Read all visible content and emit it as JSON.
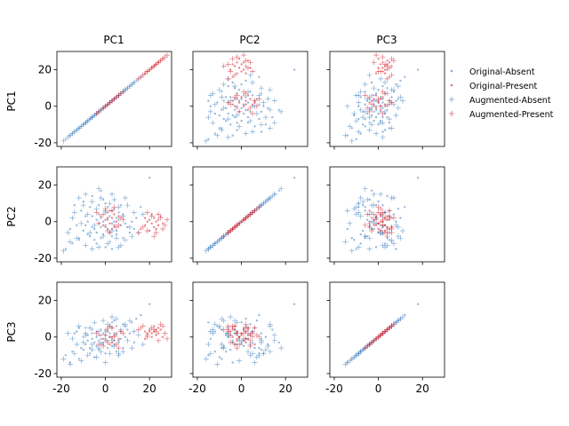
{
  "figure": {
    "row_labels": [
      "PC1",
      "PC2",
      "PC3"
    ],
    "col_labels": [
      "PC1",
      "PC2",
      "PC3"
    ]
  },
  "legend": {
    "placement": "right",
    "items": [
      {
        "label": "Original-Absent",
        "marker": "dot",
        "color": "#4f8ac4"
      },
      {
        "label": "Original-Present",
        "marker": "dot",
        "color": "#d9363e"
      },
      {
        "label": "Augmented-Absent",
        "marker": "plus",
        "color": "#4f8ac4"
      },
      {
        "label": "Augmented-Present",
        "marker": "plus",
        "color": "#d9363e"
      }
    ]
  },
  "chart_data": {
    "type": "scatter",
    "layout": "3x3 pair plot (row variable on y-axis, column variable on x-axis)",
    "variables": [
      "PC1",
      "PC2",
      "PC3"
    ],
    "xlim": [
      -22,
      30
    ],
    "ylim": [
      -22,
      30
    ],
    "x_ticks": [
      -20,
      0,
      20
    ],
    "y_ticks": [
      -20,
      0,
      20
    ],
    "grid": false,
    "colors": {
      "absent": "#4f8ac4",
      "present": "#d9363e"
    },
    "series": [
      {
        "name": "Original-Absent",
        "marker": "dot",
        "color": "#4f8ac4",
        "points": [
          [
            -18,
            -15,
            -10
          ],
          [
            -15,
            -12,
            -8
          ],
          [
            -12,
            -9,
            -12
          ],
          [
            -10,
            -5,
            -7
          ],
          [
            -9,
            -2,
            -4
          ],
          [
            -8,
            0,
            -2
          ],
          [
            -7,
            -8,
            -6
          ],
          [
            -6,
            3,
            -1
          ],
          [
            -5,
            -4,
            -3
          ],
          [
            -4,
            1,
            -5
          ],
          [
            -4,
            -6,
            0
          ],
          [
            -3,
            -1,
            -2
          ],
          [
            -3,
            4,
            1
          ],
          [
            -2,
            -3,
            -4
          ],
          [
            -2,
            2,
            -1
          ],
          [
            -1,
            -7,
            2
          ],
          [
            -1,
            0,
            -3
          ],
          [
            0,
            -2,
            1
          ],
          [
            0,
            5,
            3
          ],
          [
            1,
            -4,
            -2
          ],
          [
            1,
            1,
            4
          ],
          [
            2,
            -6,
            0
          ],
          [
            2,
            3,
            2
          ],
          [
            3,
            -1,
            -1
          ],
          [
            3,
            6,
            5
          ],
          [
            4,
            -3,
            2
          ],
          [
            4,
            0,
            -4
          ],
          [
            5,
            2,
            6
          ],
          [
            5,
            -5,
            1
          ],
          [
            6,
            1,
            -2
          ],
          [
            7,
            -2,
            3
          ],
          [
            8,
            4,
            7
          ],
          [
            9,
            -1,
            0
          ],
          [
            10,
            -3,
            4
          ],
          [
            12,
            0,
            8
          ],
          [
            14,
            2,
            10
          ],
          [
            -11,
            6,
            -6
          ],
          [
            -7,
            8,
            -9
          ],
          [
            -5,
            -10,
            -11
          ],
          [
            -3,
            9,
            -7
          ],
          [
            -6,
            -3,
            2
          ],
          [
            -2,
            -9,
            4
          ],
          [
            1,
            8,
            -6
          ],
          [
            3,
            -8,
            -5
          ],
          [
            6,
            5,
            -3
          ],
          [
            -9,
            3,
            5
          ],
          [
            -4,
            -12,
            3
          ],
          [
            0,
            10,
            -9
          ],
          [
            2,
            -11,
            6
          ],
          [
            4,
            7,
            9
          ],
          [
            -8,
            -7,
            1
          ],
          [
            -1,
            12,
            -4
          ],
          [
            5,
            -7,
            -8
          ],
          [
            7,
            9,
            -1
          ],
          [
            -13,
            -2,
            3
          ],
          [
            11,
            -6,
            2
          ],
          [
            16,
            8,
            12
          ],
          [
            20,
            24,
            18
          ],
          [
            -16,
            -4,
            -14
          ],
          [
            -10,
            11,
            0
          ],
          [
            -6,
            14,
            4
          ],
          [
            -2,
            17,
            -3
          ],
          [
            0,
            -14,
            -1
          ],
          [
            3,
            -15,
            8
          ],
          [
            8,
            -9,
            -6
          ],
          [
            -14,
            9,
            2
          ],
          [
            13,
            -4,
            -3
          ],
          [
            -12,
            -10,
            5
          ]
        ]
      },
      {
        "name": "Original-Present",
        "marker": "dot",
        "color": "#d9363e",
        "points": [
          [
            16,
            -4,
            5
          ],
          [
            18,
            -2,
            3
          ],
          [
            19,
            0,
            2
          ],
          [
            20,
            1,
            4
          ],
          [
            21,
            -1,
            0
          ],
          [
            22,
            2,
            3
          ],
          [
            22,
            -3,
            6
          ],
          [
            23,
            0,
            1
          ],
          [
            24,
            1,
            5
          ],
          [
            24,
            -2,
            2
          ],
          [
            25,
            3,
            4
          ],
          [
            26,
            -1,
            0
          ],
          [
            20,
            -5,
            3
          ],
          [
            18,
            2,
            -1
          ],
          [
            21,
            4,
            2
          ],
          [
            23,
            -4,
            4
          ],
          [
            -2,
            3,
            1
          ],
          [
            0,
            1,
            -2
          ],
          [
            1,
            5,
            3
          ],
          [
            2,
            -1,
            0
          ],
          [
            3,
            2,
            -3
          ],
          [
            4,
            4,
            1
          ],
          [
            5,
            0,
            2
          ],
          [
            -1,
            -2,
            -1
          ],
          [
            2,
            6,
            -4
          ],
          [
            0,
            -3,
            4
          ],
          [
            6,
            3,
            -1
          ],
          [
            3,
            -4,
            0
          ],
          [
            1,
            2,
            5
          ],
          [
            4,
            -2,
            -2
          ]
        ]
      },
      {
        "name": "Augmented-Absent",
        "marker": "plus",
        "color": "#4f8ac4",
        "points": [
          [
            -19,
            -16,
            -12
          ],
          [
            -16,
            -11,
            -15
          ],
          [
            -14,
            5,
            -9
          ],
          [
            -13,
            -9,
            -4
          ],
          [
            -11,
            -1,
            -13
          ],
          [
            -10,
            9,
            -3
          ],
          [
            -9,
            -13,
            2
          ],
          [
            -8,
            4,
            -10
          ],
          [
            -7,
            -6,
            5
          ],
          [
            -6,
            11,
            -7
          ],
          [
            -5,
            -2,
            8
          ],
          [
            -4,
            7,
            -11
          ],
          [
            -3,
            -14,
            3
          ],
          [
            -2,
            13,
            -8
          ],
          [
            -1,
            -8,
            9
          ],
          [
            0,
            6,
            -14
          ],
          [
            1,
            -12,
            7
          ],
          [
            2,
            10,
            -9
          ],
          [
            3,
            -5,
            11
          ],
          [
            4,
            12,
            -5
          ],
          [
            5,
            -9,
            10
          ],
          [
            6,
            8,
            -10
          ],
          [
            7,
            -13,
            4
          ],
          [
            8,
            3,
            -8
          ],
          [
            9,
            -10,
            6
          ],
          [
            10,
            9,
            -2
          ],
          [
            11,
            -3,
            9
          ],
          [
            12,
            -8,
            -6
          ],
          [
            13,
            5,
            3
          ],
          [
            15,
            -6,
            1
          ],
          [
            17,
            4,
            -4
          ],
          [
            -12,
            13,
            6
          ],
          [
            -15,
            2,
            -1
          ],
          [
            -6,
            -15,
            -4
          ],
          [
            -9,
            15,
            1
          ],
          [
            3,
            15,
            -2
          ],
          [
            6,
            -14,
            -9
          ],
          [
            -3,
            18,
            -6
          ],
          [
            9,
            13,
            7
          ],
          [
            -17,
            -6,
            2
          ]
        ]
      },
      {
        "name": "Augmented-Present",
        "marker": "plus",
        "color": "#d9363e",
        "points": [
          [
            15,
            -6,
            4
          ],
          [
            17,
            -3,
            6
          ],
          [
            19,
            -5,
            1
          ],
          [
            21,
            3,
            5
          ],
          [
            23,
            -6,
            3
          ],
          [
            25,
            2,
            7
          ],
          [
            27,
            -2,
            2
          ],
          [
            28,
            1,
            -1
          ],
          [
            19,
            5,
            0
          ],
          [
            22,
            -8,
            4
          ],
          [
            24,
            4,
            -2
          ],
          [
            26,
            -4,
            6
          ],
          [
            -4,
            5,
            2
          ],
          [
            -3,
            -1,
            -4
          ],
          [
            0,
            7,
            1
          ],
          [
            1,
            -5,
            -3
          ],
          [
            3,
            6,
            5
          ],
          [
            5,
            -3,
            -4
          ],
          [
            7,
            2,
            3
          ],
          [
            -1,
            4,
            -5
          ],
          [
            2,
            -6,
            6
          ],
          [
            4,
            8,
            0
          ],
          [
            6,
            -2,
            -6
          ],
          [
            8,
            1,
            2
          ]
        ]
      }
    ]
  }
}
